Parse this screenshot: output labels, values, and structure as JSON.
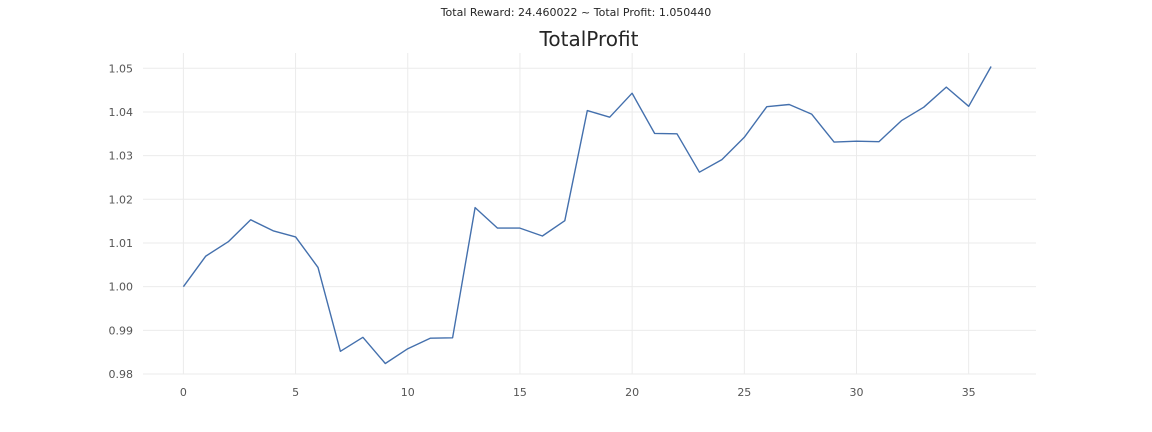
{
  "figure": {
    "suptitle": "Total Reward: 24.460022 ~ Total Profit: 1.050440"
  },
  "colors": {
    "series": "#4470ad",
    "grid": "#ebebeb",
    "tick_text": "#555555"
  },
  "chart_data": {
    "type": "line",
    "title": "TotalProfit",
    "xlabel": "",
    "ylabel": "",
    "grid": true,
    "x": [
      0,
      1,
      2,
      3,
      4,
      5,
      6,
      7,
      8,
      9,
      10,
      11,
      12,
      13,
      14,
      15,
      16,
      17,
      18,
      19,
      20,
      21,
      22,
      23,
      24,
      25,
      26,
      27,
      28,
      29,
      30,
      31,
      32,
      33,
      34,
      35,
      36
    ],
    "series": [
      {
        "values": [
          1.0,
          1.007,
          1.0103,
          1.0153,
          1.0128,
          1.0114,
          1.0044,
          0.9852,
          0.9884,
          0.9824,
          0.9858,
          0.9882,
          0.9883,
          1.0181,
          1.0134,
          1.0134,
          1.0116,
          1.0151,
          1.0403,
          1.0388,
          1.0443,
          1.0351,
          1.035,
          1.0262,
          1.0291,
          1.0342,
          1.0412,
          1.0417,
          1.0395,
          1.0331,
          1.0333,
          1.0332,
          1.038,
          1.0411,
          1.0457,
          1.0413,
          1.0504
        ]
      }
    ],
    "xlim": [
      -1.8,
      38.0
    ],
    "ylim": [
      0.98,
      1.0535
    ],
    "xticks": [
      0,
      5,
      10,
      15,
      20,
      25,
      30,
      35
    ],
    "yticks": [
      0.98,
      0.99,
      1.0,
      1.01,
      1.02,
      1.03,
      1.04,
      1.05
    ],
    "ytick_labels": [
      "0.98",
      "0.99",
      "1.00",
      "1.01",
      "1.02",
      "1.03",
      "1.04",
      "1.05"
    ],
    "xtick_labels": [
      "0",
      "5",
      "10",
      "15",
      "20",
      "25",
      "30",
      "35"
    ]
  }
}
